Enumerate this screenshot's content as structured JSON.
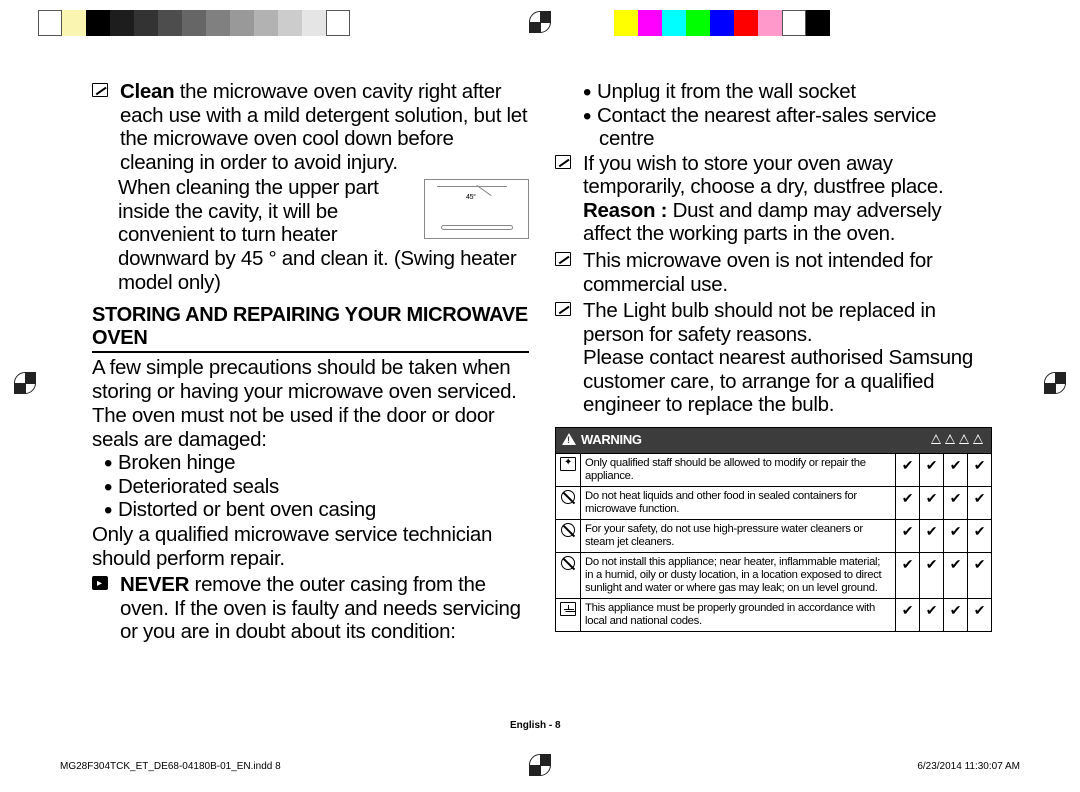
{
  "colorbar": [
    "#ffffff",
    "#fbf5b2",
    "#000000",
    "#1d1d1d",
    "#333333",
    "#4d4d4d",
    "#666666",
    "#808080",
    "#999999",
    "#b2b2b2",
    "#cccccc",
    "#e5e5e5",
    "#ffffff",
    "",
    "",
    "",
    "",
    "",
    "",
    "",
    "",
    "",
    "",
    "",
    "#ffff00",
    "#ff00ff",
    "#00ffff",
    "#00ff00",
    "#0000ff",
    "#ff0000",
    "#ff99cc",
    "#ffffff",
    "#000000"
  ],
  "left": {
    "p1_lead": "Clean",
    "p1": " the microwave oven cavity right after each use with a mild detergent solution, but let the microwave oven cool down before cleaning in order to avoid injury.",
    "p2": "When cleaning the upper part inside the cavity, it will be convenient to turn heater downward by 45 ° and clean it. (Swing heater model only)",
    "heater_label": "45°",
    "section": "STORING AND REPAIRING YOUR MICROWAVE OVEN",
    "p3": "A few simple precautions should be taken when storing or having your microwave oven serviced.",
    "p4": "The oven must not be used if the door or door seals are damaged:",
    "bul": [
      "Broken hinge",
      "Deteriorated seals",
      "Distorted or bent oven casing"
    ],
    "p5": "Only a qualified microwave service technician should perform repair.",
    "p6_lead": "NEVER",
    "p6": " remove the outer casing from the oven. If the oven is faulty and needs servicing or you are in doubt about its condition:"
  },
  "right": {
    "bul_top": [
      "Unplug it from the wall socket",
      "Contact the nearest after-sales service centre"
    ],
    "p1a": "If you wish to store your oven away temporarily, choose a dry, dustfree place.",
    "p1b_lead": "Reason : ",
    "p1b": "Dust and damp may adversely affect the working parts in the oven.",
    "p2": "This microwave oven is not intended for commercial use.",
    "p3a": "The Light bulb should not be replaced in person for safety reasons.",
    "p3b": "Please contact nearest authorised Samsung customer care, to arrange for a qualified engineer to replace the bulb."
  },
  "warning": {
    "header": "WARNING",
    "rows": [
      {
        "icon": "tool",
        "text": "Only qualified staff should be allowed to modify or repair the appliance.",
        "checks": [
          true,
          true,
          true,
          true
        ]
      },
      {
        "icon": "no",
        "text": "Do not heat liquids and other food in sealed containers for microwave function.",
        "checks": [
          true,
          true,
          true,
          true
        ]
      },
      {
        "icon": "no",
        "text": "For your safety, do not use high-pressure water cleaners or steam jet cleaners.",
        "checks": [
          true,
          true,
          true,
          true
        ]
      },
      {
        "icon": "no",
        "text": "Do not install this appliance; near heater, inflammable material; in a humid, oily or dusty location, in a location exposed to direct sunlight and water or where gas may leak; on un level ground.",
        "checks": [
          true,
          true,
          true,
          true
        ]
      },
      {
        "icon": "ground",
        "text": "This appliance must be properly grounded in accordance with local and national codes.",
        "checks": [
          true,
          true,
          true,
          true
        ]
      }
    ]
  },
  "footer": {
    "lang": "English - 8",
    "file": "MG28F304TCK_ET_DE68-04180B-01_EN.indd   8",
    "date": "6/23/2014   11:30:07 AM"
  }
}
